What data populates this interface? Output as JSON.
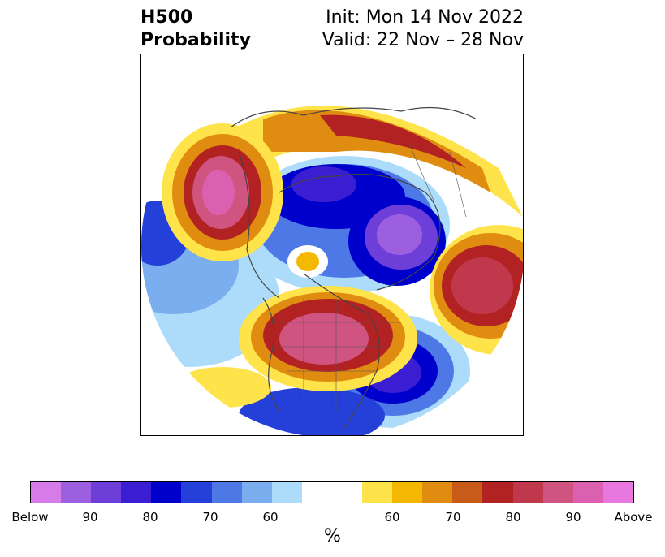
{
  "title": {
    "left_line1": "H500",
    "left_line2": "Probability",
    "right_line1": "Init: Mon 14 Nov 2022",
    "right_line2": "Valid: 22 Nov – 28 Nov"
  },
  "colorbar": {
    "colors": [
      "#d67be8",
      "#9c5fe0",
      "#6d3fd8",
      "#3b1ed2",
      "#0000cc",
      "#2440d8",
      "#4d78e6",
      "#7aaeee",
      "#acdcfa",
      "#ffffff",
      "#ffffff",
      "#ffe34a",
      "#f4b800",
      "#e08c10",
      "#c85a1a",
      "#b22222",
      "#c0384c",
      "#cf5480",
      "#dc60b0",
      "#e878e0"
    ],
    "tick_labels": [
      "Below",
      "90",
      "80",
      "70",
      "60",
      "60",
      "70",
      "80",
      "90",
      "Above"
    ],
    "unit": "%"
  },
  "map": {
    "colors": {
      "above_light": "#ffe34a",
      "above_1": "#f4b800",
      "above_2": "#e08c10",
      "above_3": "#c85a1a",
      "above_4": "#b22222",
      "above_5": "#c0384c",
      "above_6": "#cf5480",
      "above_7": "#dc60b0",
      "below_light": "#acdcfa",
      "below_1": "#7aaeee",
      "below_2": "#4d78e6",
      "below_3": "#2440d8",
      "below_4": "#0000cc",
      "below_5": "#3b1ed2",
      "below_6": "#6d3fd8",
      "below_7": "#9c5fe0"
    }
  }
}
